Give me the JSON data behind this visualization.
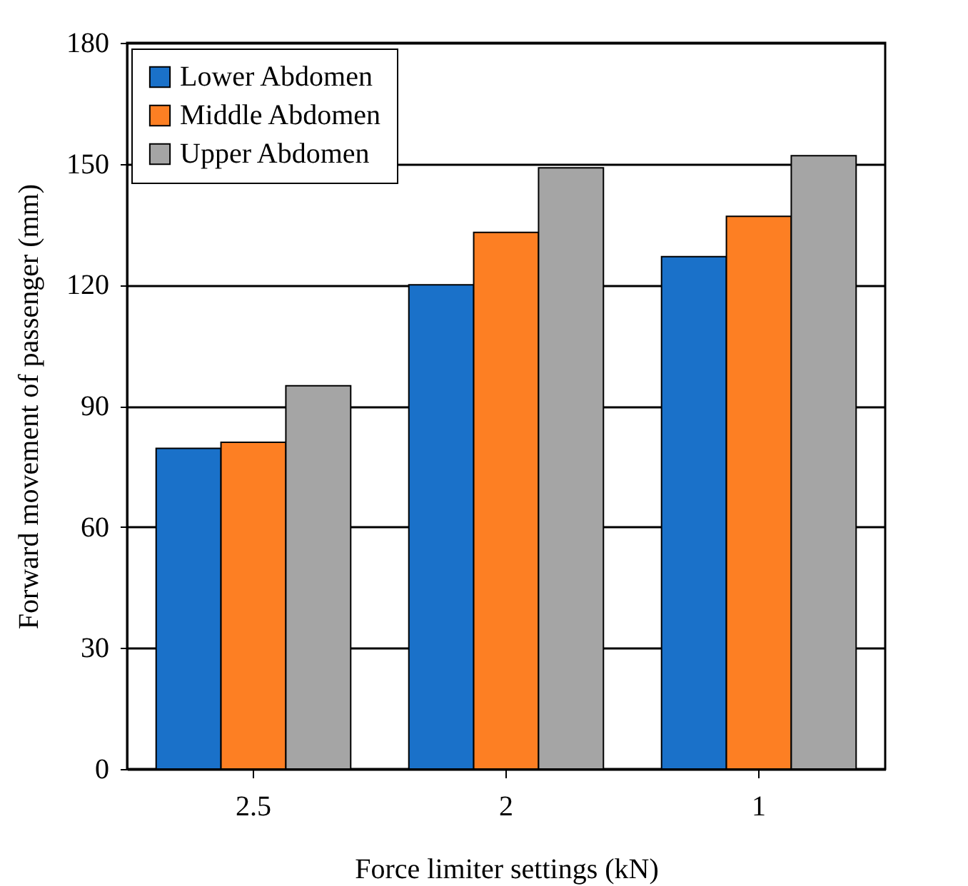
{
  "chart_data": {
    "type": "bar",
    "xlabel": "Force limiter settings (kN)",
    "ylabel": "Forward movement of passenger  (mm)",
    "categories": [
      "2.5",
      "2",
      "1"
    ],
    "series": [
      {
        "name": "Lower Abdomen",
        "color": "#1a71c9",
        "values": [
          79.5,
          120,
          127
        ]
      },
      {
        "name": "Middle Abdomen",
        "color": "#fd7f23",
        "values": [
          81,
          133,
          137
        ]
      },
      {
        "name": "Upper Abdomen",
        "color": "#a5a5a5",
        "values": [
          95,
          149,
          152
        ]
      }
    ],
    "ylim": [
      0,
      180
    ],
    "yticks": [
      0,
      30,
      60,
      90,
      120,
      150,
      180
    ],
    "grid": "y",
    "legend": "top left"
  }
}
